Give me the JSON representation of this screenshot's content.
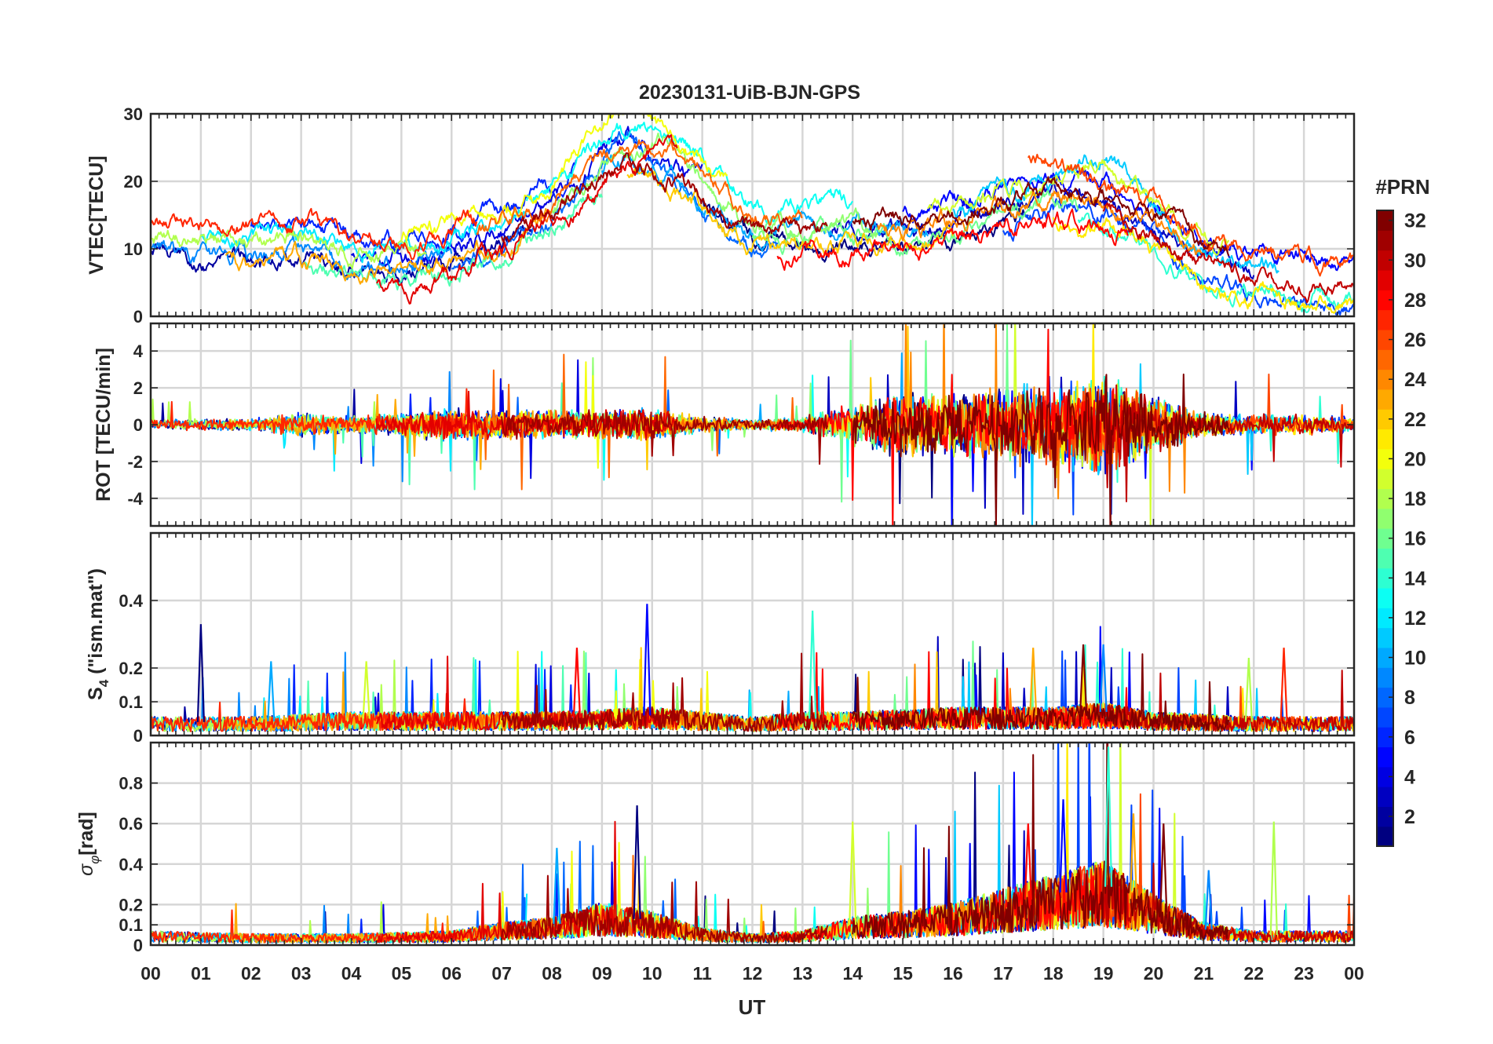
{
  "chart_data": {
    "type": "line",
    "title": "20230131-UiB-BJN-GPS",
    "xlabel": "UT",
    "x_tick_labels": [
      "00",
      "01",
      "02",
      "03",
      "04",
      "05",
      "06",
      "07",
      "08",
      "09",
      "10",
      "11",
      "12",
      "13",
      "14",
      "15",
      "16",
      "17",
      "18",
      "19",
      "20",
      "21",
      "22",
      "23",
      "00"
    ],
    "x_range_hours": [
      0,
      24
    ],
    "panels": [
      {
        "id": "vtec",
        "ylabel": "VTEC[TECU]",
        "ylim": [
          0,
          30
        ],
        "y_ticks": [
          0,
          10,
          20,
          30
        ],
        "y_tick_labels": [
          "0",
          "10",
          "20",
          "30"
        ],
        "envelope": [
          [
            0,
            10.5
          ],
          [
            1,
            10
          ],
          [
            2,
            9.5
          ],
          [
            3,
            10
          ],
          [
            4,
            8
          ],
          [
            5,
            7.5
          ],
          [
            6,
            9
          ],
          [
            7,
            12
          ],
          [
            8,
            16
          ],
          [
            9,
            21
          ],
          [
            9.5,
            23
          ],
          [
            10,
            22
          ],
          [
            11,
            18
          ],
          [
            12,
            13
          ],
          [
            13,
            13
          ],
          [
            14,
            13
          ],
          [
            15,
            13
          ],
          [
            16,
            14
          ],
          [
            17,
            16
          ],
          [
            18,
            18
          ],
          [
            19,
            17
          ],
          [
            20,
            14
          ],
          [
            21,
            9
          ],
          [
            22,
            7
          ],
          [
            23,
            6
          ],
          [
            24,
            5
          ]
        ],
        "peak_hours": [
          9.5,
          10.5,
          17.3,
          19.0
        ],
        "noise_scale": 0.5
      },
      {
        "id": "rot",
        "ylabel": "ROT [TECU/min]",
        "ylim": [
          -5.5,
          5.5
        ],
        "y_ticks": [
          -4,
          -2,
          0,
          2,
          4
        ],
        "y_tick_labels": [
          "-4",
          "-2",
          "0",
          "2",
          "4"
        ],
        "activity": [
          [
            0,
            0.25
          ],
          [
            2,
            0.3
          ],
          [
            3,
            0.6
          ],
          [
            4,
            0.4
          ],
          [
            6,
            0.8
          ],
          [
            7,
            0.7
          ],
          [
            8,
            0.7
          ],
          [
            9,
            0.7
          ],
          [
            10,
            0.8
          ],
          [
            11,
            0.4
          ],
          [
            12,
            0.25
          ],
          [
            13,
            0.4
          ],
          [
            14,
            1.0
          ],
          [
            15,
            1.6
          ],
          [
            16,
            1.6
          ],
          [
            17,
            1.8
          ],
          [
            18,
            2.2
          ],
          [
            19,
            2.4
          ],
          [
            20,
            1.4
          ],
          [
            21,
            0.6
          ],
          [
            22,
            0.5
          ],
          [
            23,
            0.5
          ],
          [
            24,
            0.4
          ]
        ]
      },
      {
        "id": "s4",
        "ylabel": "S4 (\"ism.mat\")",
        "ylabel_main": "S",
        "ylabel_sub": "4",
        "ylabel_rest": " (\"ism.mat\")",
        "ylim": [
          0,
          0.6
        ],
        "y_ticks": [
          0,
          0.1,
          0.2,
          0.4
        ],
        "y_tick_labels": [
          "0",
          "0.1",
          "0.2",
          "0.4"
        ],
        "activity": [
          [
            0,
            0.04
          ],
          [
            2,
            0.04
          ],
          [
            4,
            0.05
          ],
          [
            6,
            0.05
          ],
          [
            8,
            0.05
          ],
          [
            10,
            0.06
          ],
          [
            12,
            0.04
          ],
          [
            13,
            0.05
          ],
          [
            14,
            0.05
          ],
          [
            16,
            0.06
          ],
          [
            18,
            0.06
          ],
          [
            19,
            0.07
          ],
          [
            20,
            0.05
          ],
          [
            22,
            0.04
          ],
          [
            24,
            0.04
          ]
        ],
        "spikes": [
          [
            1.0,
            0.33
          ],
          [
            2.4,
            0.22
          ],
          [
            4.3,
            0.22
          ],
          [
            8.5,
            0.26
          ],
          [
            9.9,
            0.39
          ],
          [
            13.2,
            0.37
          ],
          [
            17.6,
            0.26
          ],
          [
            18.6,
            0.27
          ],
          [
            19.0,
            0.27
          ],
          [
            21.9,
            0.23
          ],
          [
            22.6,
            0.26
          ]
        ]
      },
      {
        "id": "sigma",
        "ylabel": "σφ[rad]",
        "ylabel_main": "σ",
        "ylabel_sub": "φ",
        "ylabel_rest": "[rad]",
        "ylim": [
          0,
          1.0
        ],
        "y_ticks": [
          0,
          0.1,
          0.2,
          0.4,
          0.6,
          0.8
        ],
        "y_tick_labels": [
          "0",
          "0.1",
          "0.2",
          "0.4",
          "0.6",
          "0.8"
        ],
        "activity": [
          [
            0,
            0.05
          ],
          [
            2,
            0.04
          ],
          [
            4,
            0.04
          ],
          [
            6,
            0.05
          ],
          [
            7,
            0.08
          ],
          [
            8,
            0.1
          ],
          [
            9,
            0.15
          ],
          [
            10,
            0.12
          ],
          [
            11,
            0.06
          ],
          [
            12,
            0.04
          ],
          [
            13,
            0.05
          ],
          [
            14,
            0.1
          ],
          [
            15,
            0.12
          ],
          [
            16,
            0.15
          ],
          [
            17,
            0.2
          ],
          [
            18,
            0.25
          ],
          [
            19,
            0.3
          ],
          [
            20,
            0.18
          ],
          [
            21,
            0.08
          ],
          [
            22,
            0.05
          ],
          [
            24,
            0.05
          ]
        ],
        "spikes": [
          [
            9.7,
            0.69
          ],
          [
            8.1,
            0.48
          ],
          [
            14.0,
            0.61
          ],
          [
            17.5,
            0.6
          ],
          [
            18.2,
            0.72
          ],
          [
            19.1,
            0.98
          ],
          [
            19.6,
            0.65
          ],
          [
            20.2,
            0.6
          ],
          [
            21.1,
            0.37
          ],
          [
            22.4,
            0.61
          ]
        ]
      }
    ],
    "colorbar": {
      "label": "#PRN",
      "range": [
        1,
        32
      ],
      "ticks": [
        2,
        4,
        6,
        8,
        10,
        12,
        14,
        16,
        18,
        20,
        22,
        24,
        26,
        28,
        30,
        32
      ],
      "tick_labels": [
        "2",
        "4",
        "6",
        "8",
        "10",
        "12",
        "14",
        "16",
        "18",
        "20",
        "22",
        "24",
        "26",
        "28",
        "30",
        "32"
      ],
      "colormap": "jet"
    },
    "satellites": [
      {
        "prn": 1,
        "start": 11.0,
        "end": 17.5
      },
      {
        "prn": 2,
        "start": 0.0,
        "end": 7.6
      },
      {
        "prn": 3,
        "start": 13.5,
        "end": 22.0
      },
      {
        "prn": 4,
        "start": 4.0,
        "end": 11.0
      },
      {
        "prn": 5,
        "start": 15.0,
        "end": 24.0
      },
      {
        "prn": 6,
        "start": 2.0,
        "end": 8.5
      },
      {
        "prn": 7,
        "start": 17.0,
        "end": 24.0
      },
      {
        "prn": 8,
        "start": 6.0,
        "end": 12.5
      },
      {
        "prn": 9,
        "start": 0.0,
        "end": 6.0
      },
      {
        "prn": 10,
        "start": 9.0,
        "end": 15.5
      },
      {
        "prn": 11,
        "start": 16.0,
        "end": 22.5
      },
      {
        "prn": 12,
        "start": 1.0,
        "end": 7.5
      },
      {
        "prn": 13,
        "start": 7.5,
        "end": 14.0
      },
      {
        "prn": 14,
        "start": 18.5,
        "end": 24.0
      },
      {
        "prn": 15,
        "start": 3.0,
        "end": 9.0
      },
      {
        "prn": 16,
        "start": 12.0,
        "end": 18.5
      },
      {
        "prn": 17,
        "start": 8.0,
        "end": 14.5
      },
      {
        "prn": 18,
        "start": 0.0,
        "end": 5.5
      },
      {
        "prn": 19,
        "start": 15.5,
        "end": 21.5
      },
      {
        "prn": 20,
        "start": 5.0,
        "end": 11.5
      },
      {
        "prn": 21,
        "start": 18.0,
        "end": 24.0
      },
      {
        "prn": 22,
        "start": 9.5,
        "end": 16.0
      },
      {
        "prn": 23,
        "start": 1.5,
        "end": 8.0
      },
      {
        "prn": 24,
        "start": 14.5,
        "end": 21.0
      },
      {
        "prn": 25,
        "start": 6.5,
        "end": 13.0
      },
      {
        "prn": 26,
        "start": 17.5,
        "end": 24.0
      },
      {
        "prn": 27,
        "start": 0.0,
        "end": 6.5
      },
      {
        "prn": 28,
        "start": 12.5,
        "end": 19.5
      },
      {
        "prn": 29,
        "start": 4.5,
        "end": 10.5
      },
      {
        "prn": 30,
        "start": 19.0,
        "end": 24.0
      },
      {
        "prn": 31,
        "start": 7.0,
        "end": 13.5
      },
      {
        "prn": 32,
        "start": 14.0,
        "end": 21.5
      }
    ]
  }
}
